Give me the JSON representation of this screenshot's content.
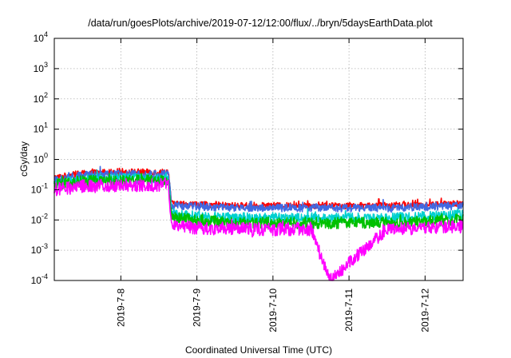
{
  "chart_data": {
    "type": "line",
    "title": "/data/run/goesPlots/archive/2019-07-12/12:00/flux/../bryn/5daysEarthData.plot",
    "xlabel": "Coordinated Universal Time (UTC)",
    "ylabel": "cGy/day",
    "yscale": "log",
    "ylim": [
      0.0001,
      10000
    ],
    "xlim": [
      "2019-07-07 03:00",
      "2019-07-12 12:00"
    ],
    "grid": true,
    "x_ticks": [
      "2019-7-8",
      "2019-7-9",
      "2019-7-10",
      "2019-7-11",
      "2019-7-12"
    ],
    "y_ticks": [
      {
        "base": "10",
        "exp": "-4"
      },
      {
        "base": "10",
        "exp": "-3"
      },
      {
        "base": "10",
        "exp": "-2"
      },
      {
        "base": "10",
        "exp": "-1"
      },
      {
        "base": "10",
        "exp": "0"
      },
      {
        "base": "10",
        "exp": "1"
      },
      {
        "base": "10",
        "exp": "2"
      },
      {
        "base": "10",
        "exp": "3"
      },
      {
        "base": "10",
        "exp": "4"
      }
    ],
    "series": [
      {
        "color": "#ff0000",
        "points": [
          [
            "2019-07-07 03:00",
            0.25
          ],
          [
            "2019-07-07 12:00",
            0.35
          ],
          [
            "2019-07-08 00:00",
            0.4
          ],
          [
            "2019-07-08 12:00",
            0.38
          ],
          [
            "2019-07-08 15:00",
            0.4
          ],
          [
            "2019-07-08 16:00",
            0.035
          ],
          [
            "2019-07-09 12:00",
            0.03
          ],
          [
            "2019-07-10 12:00",
            0.03
          ],
          [
            "2019-07-11 12:00",
            0.03
          ],
          [
            "2019-07-12 12:00",
            0.035
          ]
        ]
      },
      {
        "color": "#4169e1",
        "points": [
          [
            "2019-07-07 03:00",
            0.2
          ],
          [
            "2019-07-07 12:00",
            0.3
          ],
          [
            "2019-07-08 00:00",
            0.33
          ],
          [
            "2019-07-08 12:00",
            0.32
          ],
          [
            "2019-07-08 15:00",
            0.33
          ],
          [
            "2019-07-08 16:00",
            0.03
          ],
          [
            "2019-07-09 12:00",
            0.025
          ],
          [
            "2019-07-10 12:00",
            0.025
          ],
          [
            "2019-07-11 12:00",
            0.025
          ],
          [
            "2019-07-12 12:00",
            0.03
          ]
        ]
      },
      {
        "color": "#00d0d0",
        "points": [
          [
            "2019-07-07 03:00",
            0.16
          ],
          [
            "2019-07-07 12:00",
            0.22
          ],
          [
            "2019-07-08 00:00",
            0.24
          ],
          [
            "2019-07-08 12:00",
            0.23
          ],
          [
            "2019-07-08 15:00",
            0.24
          ],
          [
            "2019-07-08 16:00",
            0.015
          ],
          [
            "2019-07-09 12:00",
            0.012
          ],
          [
            "2019-07-10 12:00",
            0.012
          ],
          [
            "2019-07-11 12:00",
            0.012
          ],
          [
            "2019-07-12 12:00",
            0.015
          ]
        ]
      },
      {
        "color": "#00c000",
        "points": [
          [
            "2019-07-07 03:00",
            0.14
          ],
          [
            "2019-07-07 12:00",
            0.19
          ],
          [
            "2019-07-08 00:00",
            0.2
          ],
          [
            "2019-07-08 12:00",
            0.2
          ],
          [
            "2019-07-08 15:00",
            0.2
          ],
          [
            "2019-07-08 16:00",
            0.012
          ],
          [
            "2019-07-09 12:00",
            0.008
          ],
          [
            "2019-07-10 12:00",
            0.008
          ],
          [
            "2019-07-11 12:00",
            0.008
          ],
          [
            "2019-07-12 12:00",
            0.01
          ]
        ]
      },
      {
        "color": "#ff00ff",
        "points": [
          [
            "2019-07-07 03:00",
            0.1
          ],
          [
            "2019-07-07 12:00",
            0.13
          ],
          [
            "2019-07-08 00:00",
            0.14
          ],
          [
            "2019-07-08 12:00",
            0.14
          ],
          [
            "2019-07-08 15:00",
            0.15
          ],
          [
            "2019-07-08 16:00",
            0.006
          ],
          [
            "2019-07-09 12:00",
            0.005
          ],
          [
            "2019-07-10 12:00",
            0.005
          ],
          [
            "2019-07-10 18:00",
            0.0001
          ],
          [
            "2019-07-11 12:00",
            0.005
          ],
          [
            "2019-07-12 12:00",
            0.006
          ]
        ]
      }
    ]
  }
}
